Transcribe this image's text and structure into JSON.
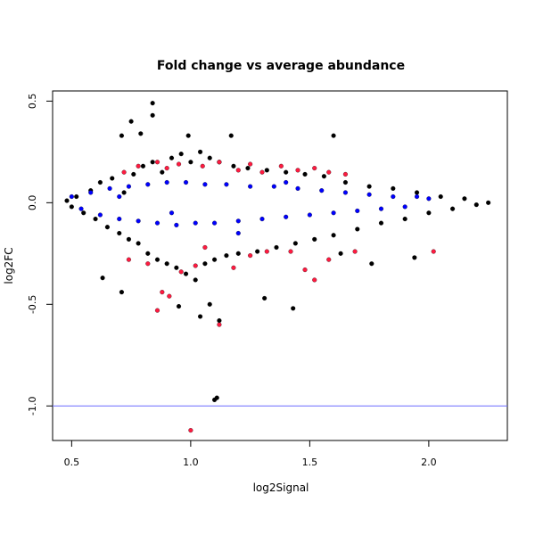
{
  "chart_data": {
    "type": "scatter",
    "title": "Fold change vs average abundance",
    "xlabel": "log2Signal",
    "ylabel": "log2FC",
    "xlim": [
      0.42,
      2.33
    ],
    "ylim": [
      -1.17,
      0.55
    ],
    "x_ticks": [
      {
        "value": 0.5,
        "label": "0.5"
      },
      {
        "value": 1.0,
        "label": "1.0"
      },
      {
        "value": 1.5,
        "label": "1.5"
      },
      {
        "value": 2.0,
        "label": "2.0"
      }
    ],
    "y_ticks": [
      {
        "value": 0.5,
        "label": "0.5"
      },
      {
        "value": 0.0,
        "label": "0.0"
      },
      {
        "value": -0.5,
        "label": "-0.5"
      },
      {
        "value": -1.0,
        "label": "-1.0"
      }
    ],
    "reference_line": {
      "y": -1.0,
      "color": "#6b6bff"
    },
    "grid": false,
    "legend": "none",
    "series": [
      {
        "color": "#000000",
        "points": [
          [
            0.48,
            0.01
          ],
          [
            0.5,
            -0.02
          ],
          [
            0.52,
            0.03
          ],
          [
            0.55,
            -0.05
          ],
          [
            0.58,
            0.06
          ],
          [
            0.6,
            -0.08
          ],
          [
            0.62,
            0.1
          ],
          [
            0.65,
            -0.12
          ],
          [
            0.67,
            0.12
          ],
          [
            0.7,
            -0.15
          ],
          [
            0.72,
            0.05
          ],
          [
            0.74,
            -0.18
          ],
          [
            0.76,
            0.14
          ],
          [
            0.78,
            -0.2
          ],
          [
            0.8,
            0.18
          ],
          [
            0.82,
            -0.25
          ],
          [
            0.84,
            0.2
          ],
          [
            0.86,
            -0.28
          ],
          [
            0.88,
            0.15
          ],
          [
            0.9,
            -0.3
          ],
          [
            0.92,
            0.22
          ],
          [
            0.94,
            -0.32
          ],
          [
            0.96,
            0.24
          ],
          [
            0.98,
            -0.35
          ],
          [
            1.0,
            0.2
          ],
          [
            1.02,
            -0.38
          ],
          [
            1.04,
            0.25
          ],
          [
            1.06,
            -0.3
          ],
          [
            1.08,
            0.22
          ],
          [
            1.1,
            -0.28
          ],
          [
            1.12,
            0.2
          ],
          [
            1.15,
            -0.26
          ],
          [
            1.18,
            0.18
          ],
          [
            1.2,
            -0.25
          ],
          [
            1.24,
            0.17
          ],
          [
            1.28,
            -0.24
          ],
          [
            1.32,
            0.16
          ],
          [
            1.36,
            -0.22
          ],
          [
            1.4,
            0.15
          ],
          [
            1.44,
            -0.2
          ],
          [
            1.48,
            0.14
          ],
          [
            1.52,
            -0.18
          ],
          [
            1.56,
            0.13
          ],
          [
            1.6,
            -0.16
          ],
          [
            1.65,
            0.1
          ],
          [
            1.7,
            -0.13
          ],
          [
            1.75,
            0.08
          ],
          [
            1.8,
            -0.1
          ],
          [
            1.85,
            0.07
          ],
          [
            1.9,
            -0.08
          ],
          [
            1.95,
            0.05
          ],
          [
            2.0,
            -0.05
          ],
          [
            2.05,
            0.03
          ],
          [
            2.1,
            -0.03
          ],
          [
            2.15,
            0.02
          ],
          [
            2.2,
            -0.01
          ],
          [
            2.25,
            0.0
          ],
          [
            0.84,
            0.49
          ],
          [
            0.84,
            0.43
          ],
          [
            0.75,
            0.4
          ],
          [
            0.79,
            0.34
          ],
          [
            0.71,
            0.33
          ],
          [
            0.99,
            0.33
          ],
          [
            1.17,
            0.33
          ],
          [
            1.6,
            0.33
          ],
          [
            0.63,
            -0.37
          ],
          [
            0.71,
            -0.44
          ],
          [
            1.08,
            -0.5
          ],
          [
            1.43,
            -0.52
          ],
          [
            1.04,
            -0.56
          ],
          [
            1.12,
            -0.58
          ],
          [
            1.11,
            -0.96
          ],
          [
            1.1,
            -0.97
          ],
          [
            0.95,
            -0.51
          ],
          [
            1.31,
            -0.47
          ],
          [
            1.76,
            -0.3
          ],
          [
            1.94,
            -0.27
          ],
          [
            1.63,
            -0.25
          ]
        ]
      },
      {
        "color": "#0000ff",
        "points": [
          [
            0.5,
            0.03
          ],
          [
            0.54,
            -0.03
          ],
          [
            0.58,
            0.05
          ],
          [
            0.62,
            -0.06
          ],
          [
            0.66,
            0.07
          ],
          [
            0.7,
            -0.08
          ],
          [
            0.74,
            0.08
          ],
          [
            0.78,
            -0.09
          ],
          [
            0.82,
            0.09
          ],
          [
            0.86,
            -0.1
          ],
          [
            0.9,
            0.1
          ],
          [
            0.94,
            -0.11
          ],
          [
            0.98,
            0.1
          ],
          [
            1.02,
            -0.1
          ],
          [
            1.06,
            0.09
          ],
          [
            1.1,
            -0.1
          ],
          [
            1.15,
            0.09
          ],
          [
            1.2,
            -0.09
          ],
          [
            1.25,
            0.08
          ],
          [
            1.3,
            -0.08
          ],
          [
            1.35,
            0.08
          ],
          [
            1.4,
            -0.07
          ],
          [
            1.45,
            0.07
          ],
          [
            1.5,
            -0.06
          ],
          [
            1.55,
            0.06
          ],
          [
            1.6,
            -0.05
          ],
          [
            1.65,
            0.05
          ],
          [
            1.7,
            -0.04
          ],
          [
            1.75,
            0.04
          ],
          [
            1.8,
            -0.03
          ],
          [
            1.85,
            0.03
          ],
          [
            1.9,
            -0.02
          ],
          [
            1.95,
            0.03
          ],
          [
            2.0,
            0.02
          ],
          [
            1.4,
            0.1
          ],
          [
            1.2,
            -0.15
          ],
          [
            0.7,
            0.03
          ],
          [
            0.92,
            -0.05
          ]
        ]
      },
      {
        "color": "#ff1a40",
        "points": [
          [
            0.72,
            0.15
          ],
          [
            0.78,
            0.18
          ],
          [
            0.86,
            0.2
          ],
          [
            0.9,
            0.17
          ],
          [
            0.95,
            0.19
          ],
          [
            1.05,
            0.18
          ],
          [
            1.12,
            0.2
          ],
          [
            1.2,
            0.16
          ],
          [
            1.25,
            0.19
          ],
          [
            1.3,
            0.15
          ],
          [
            1.38,
            0.18
          ],
          [
            1.45,
            0.16
          ],
          [
            1.52,
            0.17
          ],
          [
            1.58,
            0.15
          ],
          [
            1.65,
            0.14
          ],
          [
            0.74,
            -0.28
          ],
          [
            0.82,
            -0.3
          ],
          [
            0.88,
            -0.44
          ],
          [
            0.86,
            -0.53
          ],
          [
            0.91,
            -0.46
          ],
          [
            0.96,
            -0.34
          ],
          [
            1.02,
            -0.31
          ],
          [
            1.06,
            -0.22
          ],
          [
            1.12,
            -0.6
          ],
          [
            1.18,
            -0.32
          ],
          [
            1.25,
            -0.26
          ],
          [
            1.32,
            -0.24
          ],
          [
            1.42,
            -0.24
          ],
          [
            1.48,
            -0.33
          ],
          [
            1.52,
            -0.38
          ],
          [
            1.58,
            -0.28
          ],
          [
            1.69,
            -0.24
          ],
          [
            2.02,
            -0.24
          ],
          [
            1.0,
            -1.12
          ]
        ]
      }
    ]
  }
}
